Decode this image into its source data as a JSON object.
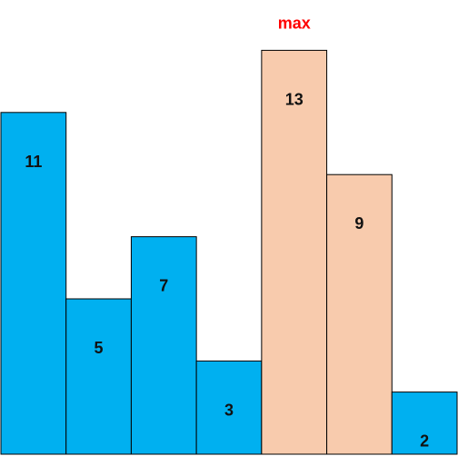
{
  "chart_data": {
    "type": "bar",
    "values": [
      11,
      5,
      7,
      3,
      13,
      9,
      2
    ],
    "data_labels": [
      "11",
      "5",
      "7",
      "3",
      "13",
      "9",
      "2"
    ],
    "highlighted_indices": [
      4,
      5
    ],
    "annotation": {
      "text": "max",
      "target_index": 4
    },
    "ylim": [
      0,
      14
    ],
    "grid": false,
    "legend": false
  },
  "colors": {
    "bar": "#00b0f0",
    "highlight": "#f8cbad",
    "stroke": "#000000",
    "annotation": "#ff0000",
    "label": "#111111"
  }
}
